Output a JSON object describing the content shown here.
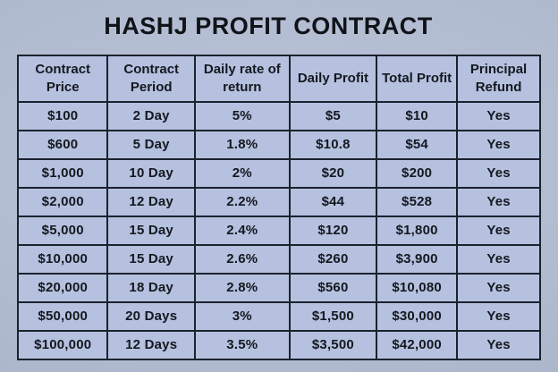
{
  "colors": {
    "page_background": "#b0bacf",
    "cell_fill": "#b5c1df",
    "grid_border": "#1b222e",
    "text": "#14181f"
  },
  "chart_data": {
    "type": "table",
    "title": "HASHJ PROFIT CONTRACT",
    "columns": [
      "Contract Price",
      "Contract Period",
      "Daily rate of return",
      "Daily Profit",
      "Total Profit",
      "Principal Refund"
    ],
    "rows": [
      [
        "$100",
        "2 Day",
        "5%",
        "$5",
        "$10",
        "Yes"
      ],
      [
        "$600",
        "5 Day",
        "1.8%",
        "$10.8",
        "$54",
        "Yes"
      ],
      [
        "$1,000",
        "10 Day",
        "2%",
        "$20",
        "$200",
        "Yes"
      ],
      [
        "$2,000",
        "12 Day",
        "2.2%",
        "$44",
        "$528",
        "Yes"
      ],
      [
        "$5,000",
        "15 Day",
        "2.4%",
        "$120",
        "$1,800",
        "Yes"
      ],
      [
        "$10,000",
        "15 Day",
        "2.6%",
        "$260",
        "$3,900",
        "Yes"
      ],
      [
        "$20,000",
        "18 Day",
        "2.8%",
        "$560",
        "$10,080",
        "Yes"
      ],
      [
        "$50,000",
        "20 Days",
        "3%",
        "$1,500",
        "$30,000",
        "Yes"
      ],
      [
        "$100,000",
        "12 Days",
        "3.5%",
        "$3,500",
        "$42,000",
        "Yes"
      ]
    ]
  }
}
